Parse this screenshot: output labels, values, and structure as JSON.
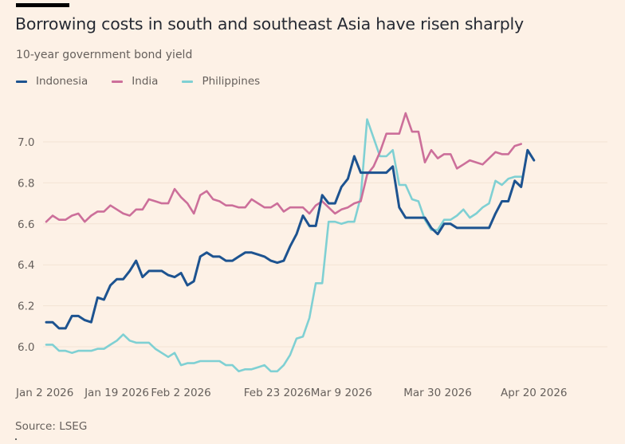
{
  "header": {
    "title": "Borrowing costs in south and southeast Asia have risen sharply",
    "subtitle": "10-year government bond yield"
  },
  "source": "Source: LSEG",
  "colors": {
    "background": "#fdf1e6",
    "Indonesia": "#1d5390",
    "India": "#cc6f9a",
    "Philippines": "#7fd0d3"
  },
  "chart_data": {
    "type": "line",
    "title": "Borrowing costs in south and southeast Asia have risen sharply",
    "subtitle": "10-year government bond yield",
    "xlabel": "",
    "ylabel": "",
    "ylim": [
      5.87,
      7.17
    ],
    "yticks": [
      6.0,
      6.2,
      6.4,
      6.6,
      6.8,
      7.0
    ],
    "ytick_labels": [
      "6.0",
      "6.2",
      "6.4",
      "6.6",
      "6.8",
      "7.0"
    ],
    "xticks": [
      {
        "date": "2026-01-02",
        "label": "Jan 2 2026"
      },
      {
        "date": "2026-01-19",
        "label": "Jan 19 2026"
      },
      {
        "date": "2026-02-02",
        "label": "Feb 2 2026"
      },
      {
        "date": "2026-02-23",
        "label": "Feb 23 2026"
      },
      {
        "date": "2026-03-09",
        "label": "Mar 9 2026"
      },
      {
        "date": "2026-03-30",
        "label": "Mar 30 2026"
      },
      {
        "date": "2026-04-20",
        "label": "Apr 20 2026"
      }
    ],
    "xlim": [
      "2026-01-02",
      "2026-04-29"
    ],
    "grid": true,
    "legend": "top-left",
    "source": "Source: LSEG",
    "series": [
      {
        "name": "Indonesia",
        "color": "#1d5390",
        "points": [
          [
            "2026-01-02",
            6.12
          ],
          [
            "2026-01-05",
            6.12
          ],
          [
            "2026-01-06",
            6.09
          ],
          [
            "2026-01-07",
            6.09
          ],
          [
            "2026-01-08",
            6.15
          ],
          [
            "2026-01-09",
            6.15
          ],
          [
            "2026-01-12",
            6.13
          ],
          [
            "2026-01-13",
            6.12
          ],
          [
            "2026-01-14",
            6.24
          ],
          [
            "2026-01-15",
            6.23
          ],
          [
            "2026-01-16",
            6.3
          ],
          [
            "2026-01-19",
            6.33
          ],
          [
            "2026-01-20",
            6.33
          ],
          [
            "2026-01-21",
            6.37
          ],
          [
            "2026-01-22",
            6.42
          ],
          [
            "2026-01-23",
            6.34
          ],
          [
            "2026-01-26",
            6.37
          ],
          [
            "2026-01-27",
            6.37
          ],
          [
            "2026-01-28",
            6.37
          ],
          [
            "2026-01-29",
            6.35
          ],
          [
            "2026-01-30",
            6.34
          ],
          [
            "2026-02-02",
            6.36
          ],
          [
            "2026-02-03",
            6.3
          ],
          [
            "2026-02-04",
            6.32
          ],
          [
            "2026-02-05",
            6.44
          ],
          [
            "2026-02-06",
            6.46
          ],
          [
            "2026-02-09",
            6.44
          ],
          [
            "2026-02-10",
            6.44
          ],
          [
            "2026-02-11",
            6.42
          ],
          [
            "2026-02-12",
            6.42
          ],
          [
            "2026-02-13",
            6.44
          ],
          [
            "2026-02-16",
            6.46
          ],
          [
            "2026-02-17",
            6.46
          ],
          [
            "2026-02-18",
            6.45
          ],
          [
            "2026-02-19",
            6.44
          ],
          [
            "2026-02-20",
            6.42
          ],
          [
            "2026-02-23",
            6.41
          ],
          [
            "2026-02-24",
            6.42
          ],
          [
            "2026-02-25",
            6.49
          ],
          [
            "2026-02-26",
            6.55
          ],
          [
            "2026-02-27",
            6.64
          ],
          [
            "2026-03-02",
            6.59
          ],
          [
            "2026-03-03",
            6.59
          ],
          [
            "2026-03-04",
            6.74
          ],
          [
            "2026-03-05",
            6.7
          ],
          [
            "2026-03-06",
            6.7
          ],
          [
            "2026-03-09",
            6.78
          ],
          [
            "2026-03-10",
            6.82
          ],
          [
            "2026-03-11",
            6.93
          ],
          [
            "2026-03-12",
            6.85
          ],
          [
            "2026-03-13",
            6.85
          ],
          [
            "2026-03-16",
            6.85
          ],
          [
            "2026-03-17",
            6.85
          ],
          [
            "2026-03-18",
            6.85
          ],
          [
            "2026-03-19",
            6.88
          ],
          [
            "2026-03-20",
            6.68
          ],
          [
            "2026-03-23",
            6.63
          ],
          [
            "2026-03-24",
            6.63
          ],
          [
            "2026-03-25",
            6.63
          ],
          [
            "2026-03-26",
            6.63
          ],
          [
            "2026-03-27",
            6.58
          ],
          [
            "2026-03-30",
            6.55
          ],
          [
            "2026-03-31",
            6.6
          ],
          [
            "2026-04-01",
            6.6
          ],
          [
            "2026-04-02",
            6.58
          ],
          [
            "2026-04-03",
            6.58
          ],
          [
            "2026-04-06",
            6.58
          ],
          [
            "2026-04-07",
            6.58
          ],
          [
            "2026-04-08",
            6.58
          ],
          [
            "2026-04-09",
            6.58
          ],
          [
            "2026-04-10",
            6.65
          ],
          [
            "2026-04-13",
            6.71
          ],
          [
            "2026-04-14",
            6.71
          ],
          [
            "2026-04-15",
            6.81
          ],
          [
            "2026-04-16",
            6.78
          ],
          [
            "2026-04-17",
            6.96
          ],
          [
            "2026-04-20",
            6.91
          ]
        ]
      },
      {
        "name": "India",
        "color": "#cc6f9a",
        "points": [
          [
            "2026-01-02",
            6.61
          ],
          [
            "2026-01-05",
            6.64
          ],
          [
            "2026-01-06",
            6.62
          ],
          [
            "2026-01-07",
            6.62
          ],
          [
            "2026-01-08",
            6.64
          ],
          [
            "2026-01-09",
            6.65
          ],
          [
            "2026-01-12",
            6.61
          ],
          [
            "2026-01-13",
            6.64
          ],
          [
            "2026-01-14",
            6.66
          ],
          [
            "2026-01-15",
            6.66
          ],
          [
            "2026-01-16",
            6.69
          ],
          [
            "2026-01-19",
            6.67
          ],
          [
            "2026-01-20",
            6.65
          ],
          [
            "2026-01-21",
            6.64
          ],
          [
            "2026-01-22",
            6.67
          ],
          [
            "2026-01-23",
            6.67
          ],
          [
            "2026-01-26",
            6.72
          ],
          [
            "2026-01-27",
            6.71
          ],
          [
            "2026-01-28",
            6.7
          ],
          [
            "2026-01-29",
            6.7
          ],
          [
            "2026-01-30",
            6.77
          ],
          [
            "2026-02-02",
            6.73
          ],
          [
            "2026-02-03",
            6.7
          ],
          [
            "2026-02-04",
            6.65
          ],
          [
            "2026-02-05",
            6.74
          ],
          [
            "2026-02-06",
            6.76
          ],
          [
            "2026-02-09",
            6.72
          ],
          [
            "2026-02-10",
            6.71
          ],
          [
            "2026-02-11",
            6.69
          ],
          [
            "2026-02-12",
            6.69
          ],
          [
            "2026-02-13",
            6.68
          ],
          [
            "2026-02-16",
            6.68
          ],
          [
            "2026-02-17",
            6.72
          ],
          [
            "2026-02-18",
            6.7
          ],
          [
            "2026-02-19",
            6.68
          ],
          [
            "2026-02-20",
            6.68
          ],
          [
            "2026-02-23",
            6.7
          ],
          [
            "2026-02-24",
            6.66
          ],
          [
            "2026-02-25",
            6.68
          ],
          [
            "2026-02-26",
            6.68
          ],
          [
            "2026-02-27",
            6.68
          ],
          [
            "2026-03-02",
            6.65
          ],
          [
            "2026-03-03",
            6.69
          ],
          [
            "2026-03-04",
            6.71
          ],
          [
            "2026-03-05",
            6.68
          ],
          [
            "2026-03-06",
            6.65
          ],
          [
            "2026-03-09",
            6.67
          ],
          [
            "2026-03-10",
            6.68
          ],
          [
            "2026-03-11",
            6.7
          ],
          [
            "2026-03-12",
            6.71
          ],
          [
            "2026-03-13",
            6.84
          ],
          [
            "2026-03-16",
            6.88
          ],
          [
            "2026-03-17",
            6.95
          ],
          [
            "2026-03-18",
            7.04
          ],
          [
            "2026-03-19",
            7.04
          ],
          [
            "2026-03-20",
            7.04
          ],
          [
            "2026-03-23",
            7.14
          ],
          [
            "2026-03-24",
            7.05
          ],
          [
            "2026-03-25",
            7.05
          ],
          [
            "2026-03-26",
            6.9
          ],
          [
            "2026-03-27",
            6.96
          ],
          [
            "2026-03-30",
            6.92
          ],
          [
            "2026-03-31",
            6.94
          ],
          [
            "2026-04-01",
            6.94
          ],
          [
            "2026-04-02",
            6.87
          ],
          [
            "2026-04-03",
            6.89
          ],
          [
            "2026-04-06",
            6.91
          ],
          [
            "2026-04-07",
            6.9
          ],
          [
            "2026-04-08",
            6.89
          ],
          [
            "2026-04-09",
            6.92
          ],
          [
            "2026-04-10",
            6.95
          ],
          [
            "2026-04-13",
            6.94
          ],
          [
            "2026-04-14",
            6.94
          ],
          [
            "2026-04-15",
            6.98
          ],
          [
            "2026-04-16",
            6.99
          ]
        ]
      },
      {
        "name": "Philippines",
        "color": "#7fd0d3",
        "points": [
          [
            "2026-01-02",
            6.01
          ],
          [
            "2026-01-05",
            6.01
          ],
          [
            "2026-01-06",
            5.98
          ],
          [
            "2026-01-07",
            5.98
          ],
          [
            "2026-01-08",
            5.97
          ],
          [
            "2026-01-09",
            5.98
          ],
          [
            "2026-01-12",
            5.98
          ],
          [
            "2026-01-13",
            5.98
          ],
          [
            "2026-01-14",
            5.99
          ],
          [
            "2026-01-15",
            5.99
          ],
          [
            "2026-01-16",
            6.01
          ],
          [
            "2026-01-19",
            6.03
          ],
          [
            "2026-01-20",
            6.06
          ],
          [
            "2026-01-21",
            6.03
          ],
          [
            "2026-01-22",
            6.02
          ],
          [
            "2026-01-23",
            6.02
          ],
          [
            "2026-01-26",
            6.02
          ],
          [
            "2026-01-27",
            5.99
          ],
          [
            "2026-01-28",
            5.97
          ],
          [
            "2026-01-29",
            5.95
          ],
          [
            "2026-01-30",
            5.97
          ],
          [
            "2026-02-02",
            5.91
          ],
          [
            "2026-02-03",
            5.92
          ],
          [
            "2026-02-04",
            5.92
          ],
          [
            "2026-02-05",
            5.93
          ],
          [
            "2026-02-06",
            5.93
          ],
          [
            "2026-02-09",
            5.93
          ],
          [
            "2026-02-10",
            5.93
          ],
          [
            "2026-02-11",
            5.91
          ],
          [
            "2026-02-12",
            5.91
          ],
          [
            "2026-02-13",
            5.88
          ],
          [
            "2026-02-16",
            5.89
          ],
          [
            "2026-02-17",
            5.89
          ],
          [
            "2026-02-18",
            5.9
          ],
          [
            "2026-02-19",
            5.91
          ],
          [
            "2026-02-20",
            5.88
          ],
          [
            "2026-02-23",
            5.88
          ],
          [
            "2026-02-24",
            5.91
          ],
          [
            "2026-02-25",
            5.96
          ],
          [
            "2026-02-26",
            6.04
          ],
          [
            "2026-02-27",
            6.05
          ],
          [
            "2026-03-02",
            6.14
          ],
          [
            "2026-03-03",
            6.31
          ],
          [
            "2026-03-04",
            6.31
          ],
          [
            "2026-03-05",
            6.61
          ],
          [
            "2026-03-06",
            6.61
          ],
          [
            "2026-03-09",
            6.6
          ],
          [
            "2026-03-10",
            6.61
          ],
          [
            "2026-03-11",
            6.61
          ],
          [
            "2026-03-12",
            6.73
          ],
          [
            "2026-03-13",
            7.11
          ],
          [
            "2026-03-16",
            7.02
          ],
          [
            "2026-03-17",
            6.93
          ],
          [
            "2026-03-18",
            6.93
          ],
          [
            "2026-03-19",
            6.96
          ],
          [
            "2026-03-20",
            6.79
          ],
          [
            "2026-03-23",
            6.79
          ],
          [
            "2026-03-24",
            6.72
          ],
          [
            "2026-03-25",
            6.71
          ],
          [
            "2026-03-26",
            6.62
          ],
          [
            "2026-03-27",
            6.57
          ],
          [
            "2026-03-30",
            6.57
          ],
          [
            "2026-03-31",
            6.62
          ],
          [
            "2026-04-01",
            6.62
          ],
          [
            "2026-04-02",
            6.64
          ],
          [
            "2026-04-03",
            6.67
          ],
          [
            "2026-04-06",
            6.63
          ],
          [
            "2026-04-07",
            6.65
          ],
          [
            "2026-04-08",
            6.68
          ],
          [
            "2026-04-09",
            6.7
          ],
          [
            "2026-04-10",
            6.81
          ],
          [
            "2026-04-13",
            6.79
          ],
          [
            "2026-04-14",
            6.82
          ],
          [
            "2026-04-15",
            6.83
          ],
          [
            "2026-04-16",
            6.83
          ]
        ]
      }
    ]
  }
}
